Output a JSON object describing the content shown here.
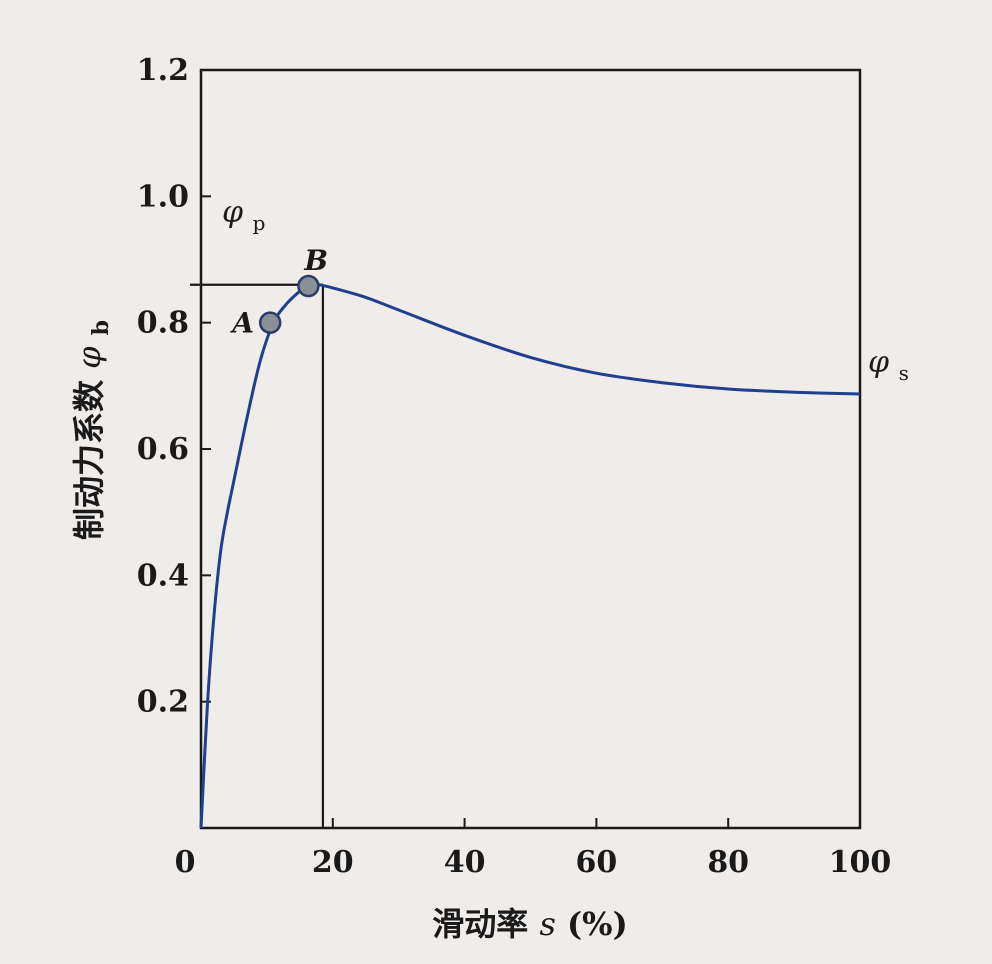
{
  "chart_data": {
    "type": "line",
    "xlabel_prefix": "滑动率",
    "xlabel_var": "s",
    "xlabel_unit": "(%)",
    "ylabel_prefix": "制动力系数",
    "ylabel_symbol": "φ",
    "ylabel_subscript": "b",
    "x_ticks": [
      "0",
      "20",
      "40",
      "60",
      "80",
      "100"
    ],
    "x_tick_values": [
      0,
      20,
      40,
      60,
      80,
      100
    ],
    "y_ticks": [
      "0.2",
      "0.4",
      "0.6",
      "0.8",
      "1.0",
      "1.2"
    ],
    "y_tick_values": [
      0.2,
      0.4,
      0.6,
      0.8,
      1.0,
      1.2
    ],
    "xlim": [
      0,
      100
    ],
    "ylim": [
      0,
      1.2
    ],
    "grid": false,
    "series": [
      {
        "color": "#1f3f8f",
        "x": [
          0,
          1,
          2,
          3,
          4,
          5,
          7,
          9,
          11,
          13,
          15,
          16,
          17,
          18,
          20,
          25,
          30,
          40,
          50,
          60,
          70,
          80,
          90,
          100
        ],
        "y": [
          0.0,
          0.2,
          0.34,
          0.44,
          0.5,
          0.55,
          0.65,
          0.74,
          0.8,
          0.83,
          0.85,
          0.858,
          0.86,
          0.86,
          0.855,
          0.84,
          0.82,
          0.78,
          0.745,
          0.72,
          0.705,
          0.695,
          0.69,
          0.687
        ]
      }
    ],
    "points": [
      {
        "label": "A",
        "x": 10.5,
        "y": 0.8
      },
      {
        "label": "B",
        "x": 16.3,
        "y": 0.858
      }
    ],
    "annotations": [
      {
        "symbol": "φ",
        "subscript": "p",
        "meaning": "peak",
        "y": 0.86
      },
      {
        "symbol": "φ",
        "subscript": "s",
        "meaning": "sliding",
        "y": 0.687
      }
    ],
    "reference_lines": {
      "horizontal_y": 0.86,
      "vertical_x": 18.5
    }
  }
}
